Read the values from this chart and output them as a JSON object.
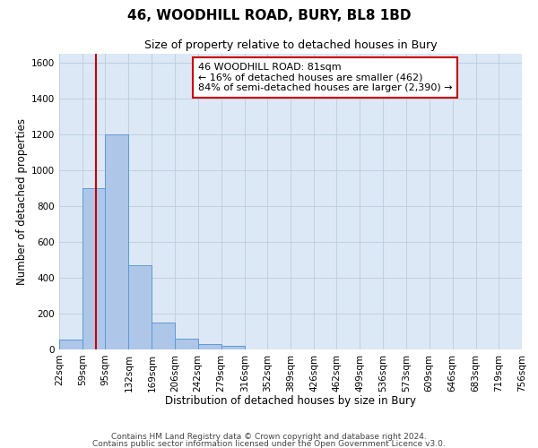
{
  "title": "46, WOODHILL ROAD, BURY, BL8 1BD",
  "subtitle": "Size of property relative to detached houses in Bury",
  "xlabel": "Distribution of detached houses by size in Bury",
  "ylabel": "Number of detached properties",
  "bin_edges": [
    22,
    59,
    95,
    132,
    169,
    206,
    242,
    279,
    316,
    352,
    389,
    426,
    462,
    499,
    536,
    573,
    609,
    646,
    683,
    719,
    756
  ],
  "bar_heights": [
    55,
    900,
    1200,
    470,
    150,
    60,
    30,
    20,
    0,
    0,
    0,
    0,
    0,
    0,
    0,
    0,
    0,
    0,
    0,
    0
  ],
  "bar_color": "#aec6e8",
  "bar_edge_color": "#5b9bd5",
  "property_size": 81,
  "red_line_color": "#cc0000",
  "annotation_line1": "46 WOODHILL ROAD: 81sqm",
  "annotation_line2": "← 16% of detached houses are smaller (462)",
  "annotation_line3": "84% of semi-detached houses are larger (2,390) →",
  "annotation_box_color": "#ffffff",
  "annotation_box_edge": "#cc0000",
  "ylim": [
    0,
    1650
  ],
  "yticks": [
    0,
    200,
    400,
    600,
    800,
    1000,
    1200,
    1400,
    1600
  ],
  "footer1": "Contains HM Land Registry data © Crown copyright and database right 2024.",
  "footer2": "Contains public sector information licensed under the Open Government Licence v3.0.",
  "background_color": "#ffffff",
  "plot_bg_color": "#dce8f5",
  "grid_color": "#c0d0e0",
  "title_fontsize": 11,
  "subtitle_fontsize": 9,
  "label_fontsize": 8.5,
  "tick_fontsize": 7.5,
  "annotation_fontsize": 8,
  "footer_fontsize": 6.5
}
